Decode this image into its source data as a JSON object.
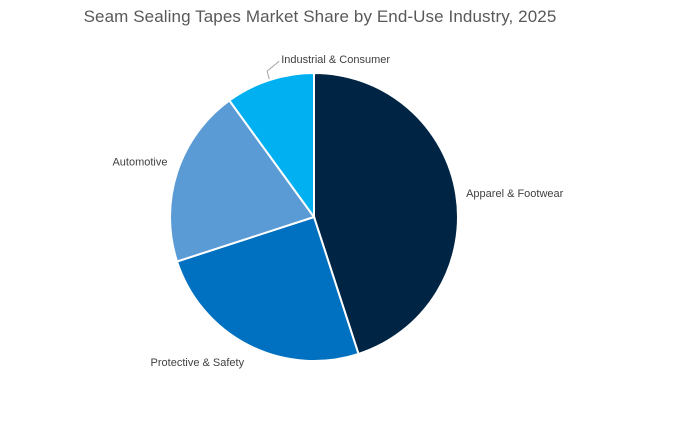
{
  "chart_data": {
    "type": "pie",
    "title": "Seam Sealing Tapes Market Share by End-Use Industry, 2025",
    "start_angle_deg": 0,
    "direction": "clockwise",
    "legend": "none",
    "labels_position": "outside",
    "slices": [
      {
        "label": "Apparel & Footwear",
        "value": 45,
        "color": "#002544"
      },
      {
        "label": "Protective & Safety",
        "value": 25,
        "color": "#0070C0"
      },
      {
        "label": "Automotive",
        "value": 20,
        "color": "#5B9BD5"
      },
      {
        "label": "Industrial & Consumer",
        "value": 10,
        "color": "#00B0F0"
      }
    ]
  }
}
